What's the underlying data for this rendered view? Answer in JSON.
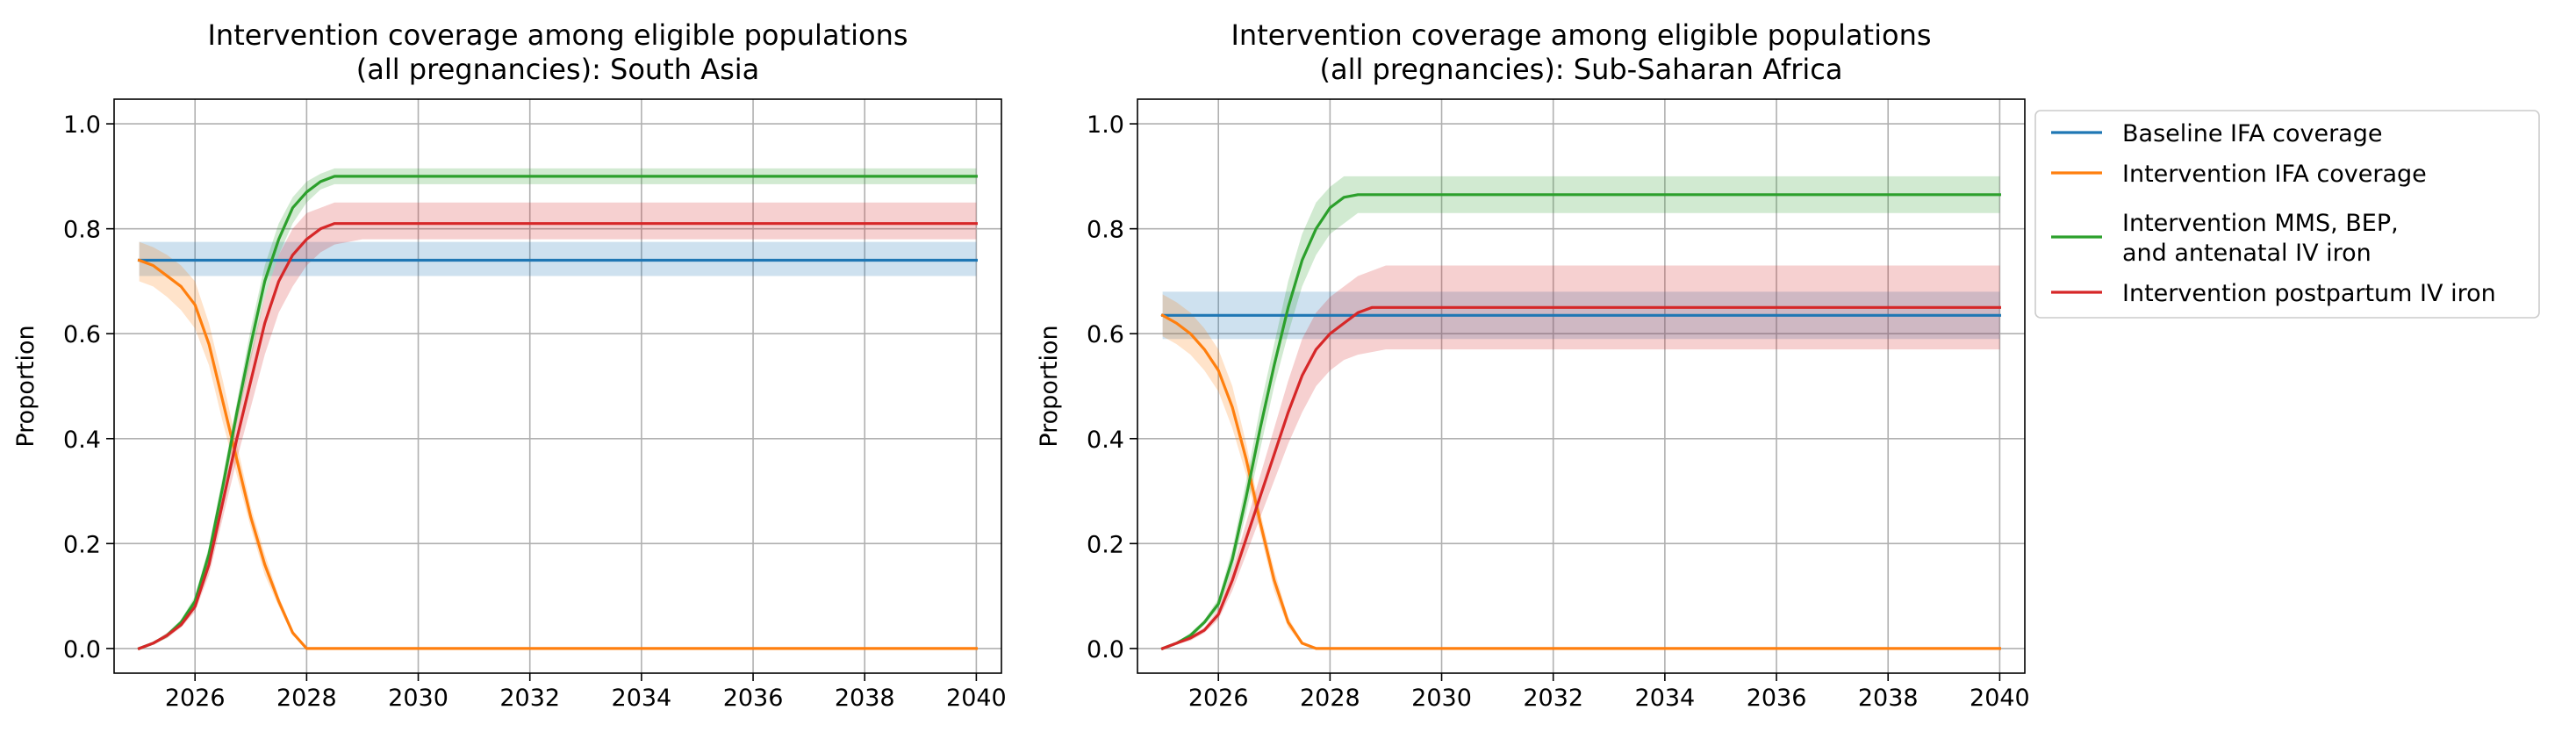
{
  "colors": {
    "baseline": "#1f77b4",
    "ifa": "#ff7f0e",
    "mms": "#2ca02c",
    "pp": "#d62728",
    "grid": "#b0b0b0",
    "axis": "#000000"
  },
  "chart_data": [
    {
      "type": "line",
      "title_line1": "Intervention coverage among eligible populations",
      "title_line2": "(all pregnancies): South Asia",
      "ylabel": "Proportion",
      "xlabel": "",
      "xlim": [
        2024.55,
        2040.45
      ],
      "ylim": [
        -0.047,
        1.047
      ],
      "x_ticks": [
        2026,
        2028,
        2030,
        2032,
        2034,
        2036,
        2038,
        2040
      ],
      "y_ticks": [
        0.0,
        0.2,
        0.4,
        0.6,
        0.8,
        1.0
      ],
      "y_tick_labels": [
        "0.0",
        "0.2",
        "0.4",
        "0.6",
        "0.8",
        "1.0"
      ],
      "grid": true,
      "legend": "none",
      "series": [
        {
          "key": "baseline",
          "name": "Baseline IFA coverage",
          "x": [
            2025,
            2040
          ],
          "y": [
            0.74,
            0.74
          ],
          "lower": [
            0.71,
            0.71
          ],
          "upper": [
            0.775,
            0.775
          ]
        },
        {
          "key": "ifa",
          "name": "Intervention IFA coverage",
          "x": [
            2025,
            2025.25,
            2025.5,
            2025.75,
            2026,
            2026.25,
            2026.5,
            2026.75,
            2027,
            2027.25,
            2027.5,
            2027.75,
            2028,
            2040
          ],
          "y": [
            0.74,
            0.73,
            0.71,
            0.69,
            0.655,
            0.58,
            0.47,
            0.36,
            0.25,
            0.16,
            0.09,
            0.03,
            0.0,
            0.0
          ],
          "lower": [
            0.7,
            0.69,
            0.67,
            0.645,
            0.61,
            0.54,
            0.43,
            0.33,
            0.23,
            0.14,
            0.08,
            0.025,
            0.0,
            0.0
          ],
          "upper": [
            0.775,
            0.765,
            0.75,
            0.73,
            0.7,
            0.62,
            0.51,
            0.39,
            0.27,
            0.18,
            0.1,
            0.035,
            0.0,
            0.0
          ]
        },
        {
          "key": "mms",
          "name": "Intervention MMS, BEP,\nand antenatal IV iron",
          "x": [
            2025,
            2025.25,
            2025.5,
            2025.75,
            2026,
            2026.25,
            2026.5,
            2026.75,
            2027,
            2027.25,
            2027.5,
            2027.75,
            2028,
            2028.25,
            2028.5,
            2028.75,
            2029,
            2040
          ],
          "y": [
            0.0,
            0.01,
            0.025,
            0.05,
            0.09,
            0.18,
            0.31,
            0.45,
            0.58,
            0.7,
            0.78,
            0.84,
            0.87,
            0.89,
            0.9,
            0.9,
            0.9,
            0.9
          ],
          "lower": [
            0.0,
            0.008,
            0.02,
            0.045,
            0.08,
            0.165,
            0.29,
            0.43,
            0.55,
            0.67,
            0.75,
            0.81,
            0.85,
            0.875,
            0.885,
            0.885,
            0.885,
            0.885
          ],
          "upper": [
            0.0,
            0.012,
            0.03,
            0.055,
            0.1,
            0.195,
            0.33,
            0.47,
            0.61,
            0.73,
            0.81,
            0.86,
            0.89,
            0.905,
            0.915,
            0.915,
            0.915,
            0.915
          ]
        },
        {
          "key": "pp",
          "name": "Intervention postpartum IV iron",
          "x": [
            2025,
            2025.25,
            2025.5,
            2025.75,
            2026,
            2026.25,
            2026.5,
            2026.75,
            2027,
            2027.25,
            2027.5,
            2027.75,
            2028,
            2028.25,
            2028.5,
            2028.75,
            2029,
            2040
          ],
          "y": [
            0.0,
            0.01,
            0.025,
            0.045,
            0.08,
            0.16,
            0.28,
            0.4,
            0.51,
            0.62,
            0.7,
            0.75,
            0.78,
            0.8,
            0.81,
            0.81,
            0.81,
            0.81
          ],
          "lower": [
            0.0,
            0.008,
            0.02,
            0.04,
            0.07,
            0.14,
            0.25,
            0.36,
            0.46,
            0.56,
            0.64,
            0.69,
            0.73,
            0.755,
            0.77,
            0.775,
            0.78,
            0.78
          ],
          "upper": [
            0.0,
            0.012,
            0.03,
            0.05,
            0.09,
            0.18,
            0.31,
            0.44,
            0.56,
            0.67,
            0.75,
            0.8,
            0.83,
            0.84,
            0.85,
            0.85,
            0.85,
            0.85
          ]
        }
      ]
    },
    {
      "type": "line",
      "title_line1": "Intervention coverage among eligible populations",
      "title_line2": "(all pregnancies): Sub-Saharan Africa",
      "ylabel": "Proportion",
      "xlabel": "",
      "xlim": [
        2024.55,
        2040.45
      ],
      "ylim": [
        -0.047,
        1.047
      ],
      "x_ticks": [
        2026,
        2028,
        2030,
        2032,
        2034,
        2036,
        2038,
        2040
      ],
      "y_ticks": [
        0.0,
        0.2,
        0.4,
        0.6,
        0.8,
        1.0
      ],
      "y_tick_labels": [
        "0.0",
        "0.2",
        "0.4",
        "0.6",
        "0.8",
        "1.0"
      ],
      "grid": true,
      "legend": "outside right",
      "series": [
        {
          "key": "baseline",
          "name": "Baseline IFA coverage",
          "x": [
            2025,
            2040
          ],
          "y": [
            0.635,
            0.635
          ],
          "lower": [
            0.59,
            0.59
          ],
          "upper": [
            0.68,
            0.68
          ]
        },
        {
          "key": "ifa",
          "name": "Intervention IFA coverage",
          "x": [
            2025,
            2025.25,
            2025.5,
            2025.75,
            2026,
            2026.25,
            2026.5,
            2026.75,
            2027,
            2027.25,
            2027.5,
            2027.75,
            2028,
            2040
          ],
          "y": [
            0.635,
            0.62,
            0.6,
            0.57,
            0.53,
            0.46,
            0.36,
            0.24,
            0.13,
            0.05,
            0.01,
            0.0,
            0.0,
            0.0
          ],
          "lower": [
            0.595,
            0.58,
            0.56,
            0.53,
            0.49,
            0.42,
            0.33,
            0.22,
            0.11,
            0.04,
            0.008,
            0.0,
            0.0,
            0.0
          ],
          "upper": [
            0.675,
            0.66,
            0.64,
            0.61,
            0.57,
            0.5,
            0.39,
            0.26,
            0.15,
            0.06,
            0.012,
            0.0,
            0.0,
            0.0
          ]
        },
        {
          "key": "mms",
          "name": "Intervention MMS, BEP,\nand antenatal IV iron",
          "x": [
            2025,
            2025.25,
            2025.5,
            2025.75,
            2026,
            2026.25,
            2026.5,
            2026.75,
            2027,
            2027.25,
            2027.5,
            2027.75,
            2028,
            2028.25,
            2028.5,
            2028.75,
            2029,
            2040
          ],
          "y": [
            0.0,
            0.01,
            0.025,
            0.05,
            0.085,
            0.17,
            0.29,
            0.42,
            0.54,
            0.65,
            0.74,
            0.8,
            0.84,
            0.86,
            0.865,
            0.865,
            0.865,
            0.865
          ],
          "lower": [
            0.0,
            0.008,
            0.02,
            0.045,
            0.075,
            0.15,
            0.26,
            0.38,
            0.5,
            0.6,
            0.69,
            0.75,
            0.79,
            0.81,
            0.83,
            0.83,
            0.83,
            0.83
          ],
          "upper": [
            0.0,
            0.012,
            0.03,
            0.055,
            0.095,
            0.19,
            0.32,
            0.46,
            0.58,
            0.7,
            0.79,
            0.85,
            0.88,
            0.9,
            0.9,
            0.9,
            0.9,
            0.9
          ]
        },
        {
          "key": "pp",
          "name": "Intervention postpartum IV iron",
          "x": [
            2025,
            2025.25,
            2025.5,
            2025.75,
            2026,
            2026.25,
            2026.5,
            2026.75,
            2027,
            2027.25,
            2027.5,
            2027.75,
            2028,
            2028.25,
            2028.5,
            2028.75,
            2029,
            2040
          ],
          "y": [
            0.0,
            0.01,
            0.02,
            0.035,
            0.065,
            0.13,
            0.21,
            0.29,
            0.37,
            0.45,
            0.52,
            0.57,
            0.6,
            0.62,
            0.64,
            0.65,
            0.65,
            0.65
          ],
          "lower": [
            0.0,
            0.008,
            0.015,
            0.03,
            0.055,
            0.11,
            0.18,
            0.25,
            0.32,
            0.39,
            0.45,
            0.5,
            0.53,
            0.55,
            0.56,
            0.565,
            0.57,
            0.57
          ],
          "upper": [
            0.0,
            0.012,
            0.025,
            0.04,
            0.075,
            0.15,
            0.24,
            0.33,
            0.42,
            0.51,
            0.59,
            0.64,
            0.67,
            0.69,
            0.71,
            0.72,
            0.73,
            0.73
          ]
        }
      ]
    }
  ],
  "legend_items": [
    {
      "key": "baseline",
      "lines": [
        "Baseline IFA coverage"
      ]
    },
    {
      "key": "ifa",
      "lines": [
        "Intervention IFA coverage"
      ]
    },
    {
      "key": "mms",
      "lines": [
        "Intervention MMS, BEP,",
        "and antenatal IV iron"
      ]
    },
    {
      "key": "pp",
      "lines": [
        "Intervention postpartum IV iron"
      ]
    }
  ]
}
